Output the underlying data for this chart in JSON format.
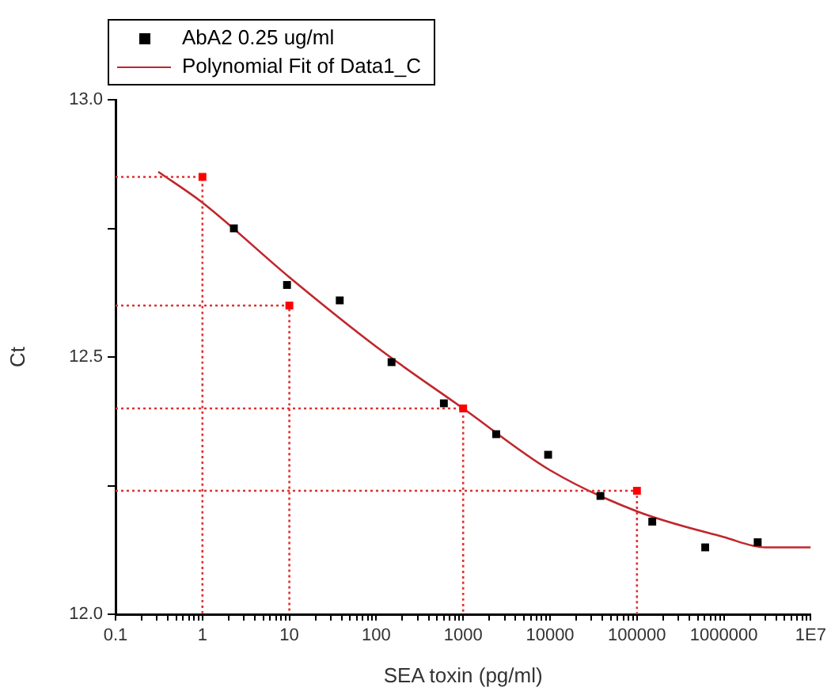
{
  "chart_data": {
    "type": "scatter",
    "xlabel": "SEA toxin (pg/ml)",
    "ylabel": "Ct",
    "log": "x",
    "legend": "top left",
    "grid": false,
    "marker": "square",
    "xlim": [
      0.1,
      10000000
    ],
    "ylim": [
      12.0,
      13.0
    ],
    "xticks": [
      0.1,
      {
        "value": 0.2,
        "label": null
      },
      {
        "value": 0.3,
        "label": null
      },
      {
        "value": 0.4,
        "label": null
      },
      {
        "value": 0.5,
        "label": null
      },
      {
        "value": 0.6,
        "label": null
      },
      {
        "value": 0.7,
        "label": null
      },
      {
        "value": 0.8,
        "label": null
      },
      {
        "value": 0.9,
        "label": null
      },
      1,
      {
        "value": 2,
        "label": null
      },
      {
        "value": 3,
        "label": null
      },
      {
        "value": 4,
        "label": null
      },
      {
        "value": 5,
        "label": null
      },
      {
        "value": 6,
        "label": null
      },
      {
        "value": 7,
        "label": null
      },
      {
        "value": 8,
        "label": null
      },
      {
        "value": 9,
        "label": null
      },
      10,
      {
        "value": 20,
        "label": null
      },
      {
        "value": 30,
        "label": null
      },
      {
        "value": 40,
        "label": null
      },
      {
        "value": 50,
        "label": null
      },
      {
        "value": 60,
        "label": null
      },
      {
        "value": 70,
        "label": null
      },
      {
        "value": 80,
        "label": null
      },
      {
        "value": 90,
        "label": null
      },
      100,
      {
        "value": 200,
        "label": null
      },
      {
        "value": 300,
        "label": null
      },
      {
        "value": 400,
        "label": null
      },
      {
        "value": 500,
        "label": null
      },
      {
        "value": 600,
        "label": null
      },
      {
        "value": 700,
        "label": null
      },
      {
        "value": 800,
        "label": null
      },
      {
        "value": 900,
        "label": null
      },
      1000,
      {
        "value": 2000,
        "label": null
      },
      {
        "value": 3000,
        "label": null
      },
      {
        "value": 4000,
        "label": null
      },
      {
        "value": 5000,
        "label": null
      },
      {
        "value": 6000,
        "label": null
      },
      {
        "value": 7000,
        "label": null
      },
      {
        "value": 8000,
        "label": null
      },
      {
        "value": 9000,
        "label": null
      },
      10000,
      {
        "value": 20000,
        "label": null
      },
      {
        "value": 30000,
        "label": null
      },
      {
        "value": 40000,
        "label": null
      },
      {
        "value": 50000,
        "label": null
      },
      {
        "value": 60000,
        "label": null
      },
      {
        "value": 70000,
        "label": null
      },
      {
        "value": 80000,
        "label": null
      },
      {
        "value": 90000,
        "label": null
      },
      100000,
      {
        "value": 200000,
        "label": null
      },
      {
        "value": 300000,
        "label": null
      },
      {
        "value": 400000,
        "label": null
      },
      {
        "value": 500000,
        "label": null
      },
      {
        "value": 600000,
        "label": null
      },
      {
        "value": 700000,
        "label": null
      },
      {
        "value": 800000,
        "label": null
      },
      {
        "value": 900000,
        "label": null
      },
      1000000,
      {
        "value": 2000000,
        "label": null
      },
      {
        "value": 3000000,
        "label": null
      },
      {
        "value": 4000000,
        "label": null
      },
      {
        "value": 5000000,
        "label": null
      },
      {
        "value": 6000000,
        "label": null
      },
      {
        "value": 7000000,
        "label": null
      },
      {
        "value": 8000000,
        "label": null
      },
      {
        "value": 9000000,
        "label": null
      },
      {
        "value": 10000000,
        "label": "1E7"
      }
    ],
    "yticks": [
      {
        "value": 12.0,
        "label": "12.0"
      },
      {
        "value": 12.25,
        "label": null
      },
      {
        "value": 12.5,
        "label": "12.5"
      },
      {
        "value": 12.75,
        "label": null
      },
      {
        "value": 13.0,
        "label": "13.0"
      }
    ],
    "series": [
      {
        "type": "line",
        "line_style": "dotted",
        "marker": "none",
        "color": "#e03030",
        "x": [
          0.1,
          1,
          1
        ],
        "values": [
          12.85,
          12.85,
          12.0
        ]
      },
      {
        "type": "line",
        "line_style": "dotted",
        "marker": "none",
        "color": "#e03030",
        "x": [
          0.1,
          10,
          10
        ],
        "values": [
          12.6,
          12.6,
          12.0
        ]
      },
      {
        "type": "line",
        "line_style": "dotted",
        "marker": "none",
        "color": "#e03030",
        "x": [
          0.1,
          1000,
          1000
        ],
        "values": [
          12.4,
          12.4,
          12.0
        ]
      },
      {
        "type": "line",
        "line_style": "dotted",
        "marker": "none",
        "color": "#e03030",
        "x": [
          0.1,
          100000,
          100000
        ],
        "values": [
          12.24,
          12.24,
          12.0
        ]
      },
      {
        "name": "AbA2 0.25 ug/ml",
        "color": "#000000",
        "x": [
          2.3,
          9.4,
          38,
          150,
          600,
          2400,
          9500,
          38000,
          150000,
          610000,
          2450000
        ],
        "values": [
          12.75,
          12.64,
          12.61,
          12.49,
          12.41,
          12.35,
          12.31,
          12.23,
          12.18,
          12.13,
          12.14
        ]
      },
      {
        "color": "#ff0000",
        "x": [
          1,
          10,
          1000,
          100000
        ],
        "values": [
          12.85,
          12.6,
          12.4,
          12.24
        ]
      },
      {
        "name": "Polynomial Fit of Data1_C",
        "type": "line",
        "marker": "none",
        "line_style": "solid",
        "color": "#c0262c",
        "x": [
          0.31,
          1,
          10,
          100,
          1000,
          10000,
          100000,
          1000000,
          3000000,
          10000000
        ],
        "values": [
          12.86,
          12.8,
          12.655,
          12.52,
          12.4,
          12.28,
          12.2,
          12.15,
          12.13,
          12.13
        ]
      }
    ]
  }
}
